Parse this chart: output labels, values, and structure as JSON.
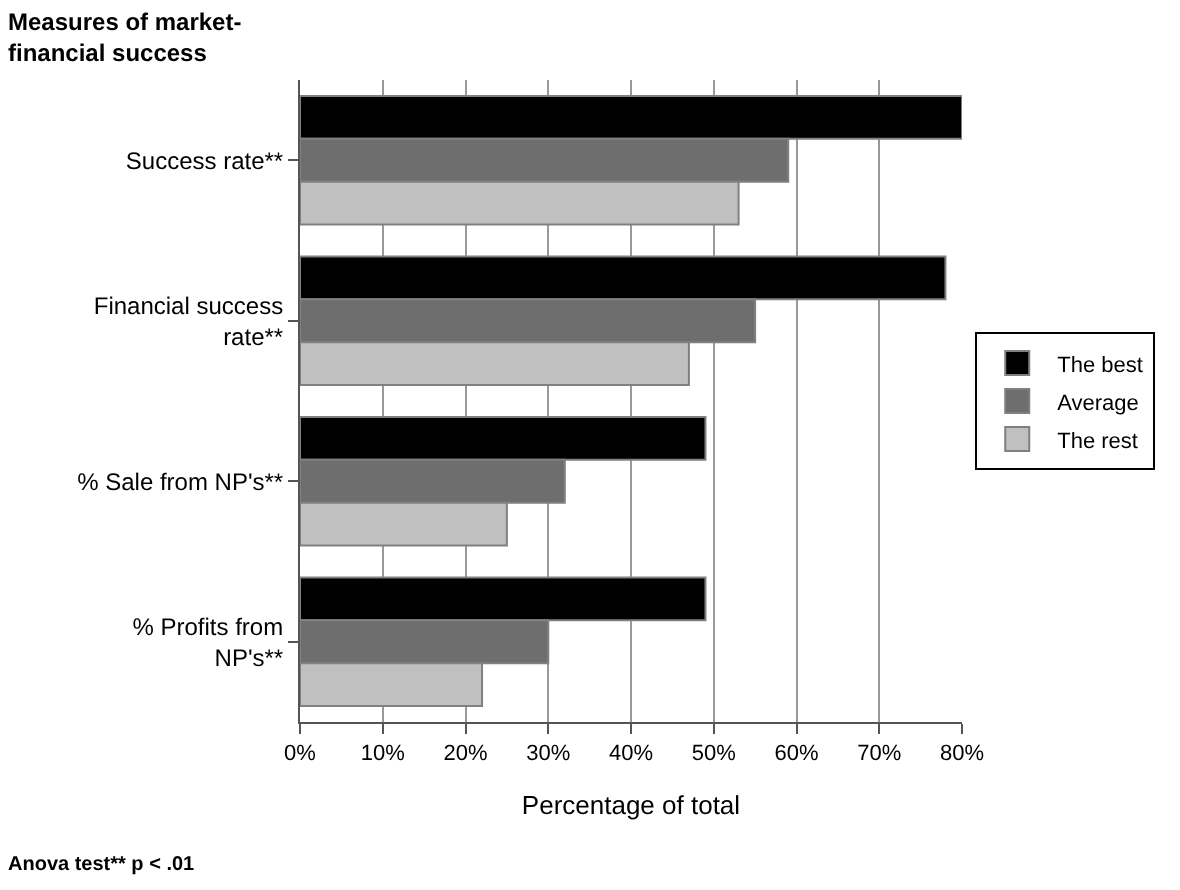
{
  "chart_data": {
    "type": "bar",
    "orientation": "horizontal",
    "ylabel": "Measures of market-\nfinancial success",
    "xlabel": "Percentage of total",
    "categories": [
      "Success rate**",
      "Financial success\nrate**",
      "% Sale from NP's**",
      "% Profits from\nNP's**"
    ],
    "series": [
      {
        "name": "The best",
        "color": "#000000",
        "values": [
          80,
          78,
          49,
          49
        ]
      },
      {
        "name": "Average",
        "color": "#6e6e6e",
        "values": [
          59,
          55,
          32,
          30
        ]
      },
      {
        "name": "The rest",
        "color": "#c0c0c0",
        "values": [
          53,
          47,
          25,
          22
        ]
      }
    ],
    "xlim": [
      0,
      80
    ],
    "xticks": [
      {
        "value": 0,
        "label": "0%"
      },
      {
        "value": 10,
        "label": "10%"
      },
      {
        "value": 20,
        "label": "20%"
      },
      {
        "value": 30,
        "label": "30%"
      },
      {
        "value": 40,
        "label": "40%"
      },
      {
        "value": 50,
        "label": "50%"
      },
      {
        "value": 60,
        "label": "60%"
      },
      {
        "value": 70,
        "label": "70%"
      },
      {
        "value": 80,
        "label": "80%"
      }
    ],
    "grid": "x",
    "legend": "right",
    "annotations": [
      "Anova test** p < .01"
    ]
  }
}
